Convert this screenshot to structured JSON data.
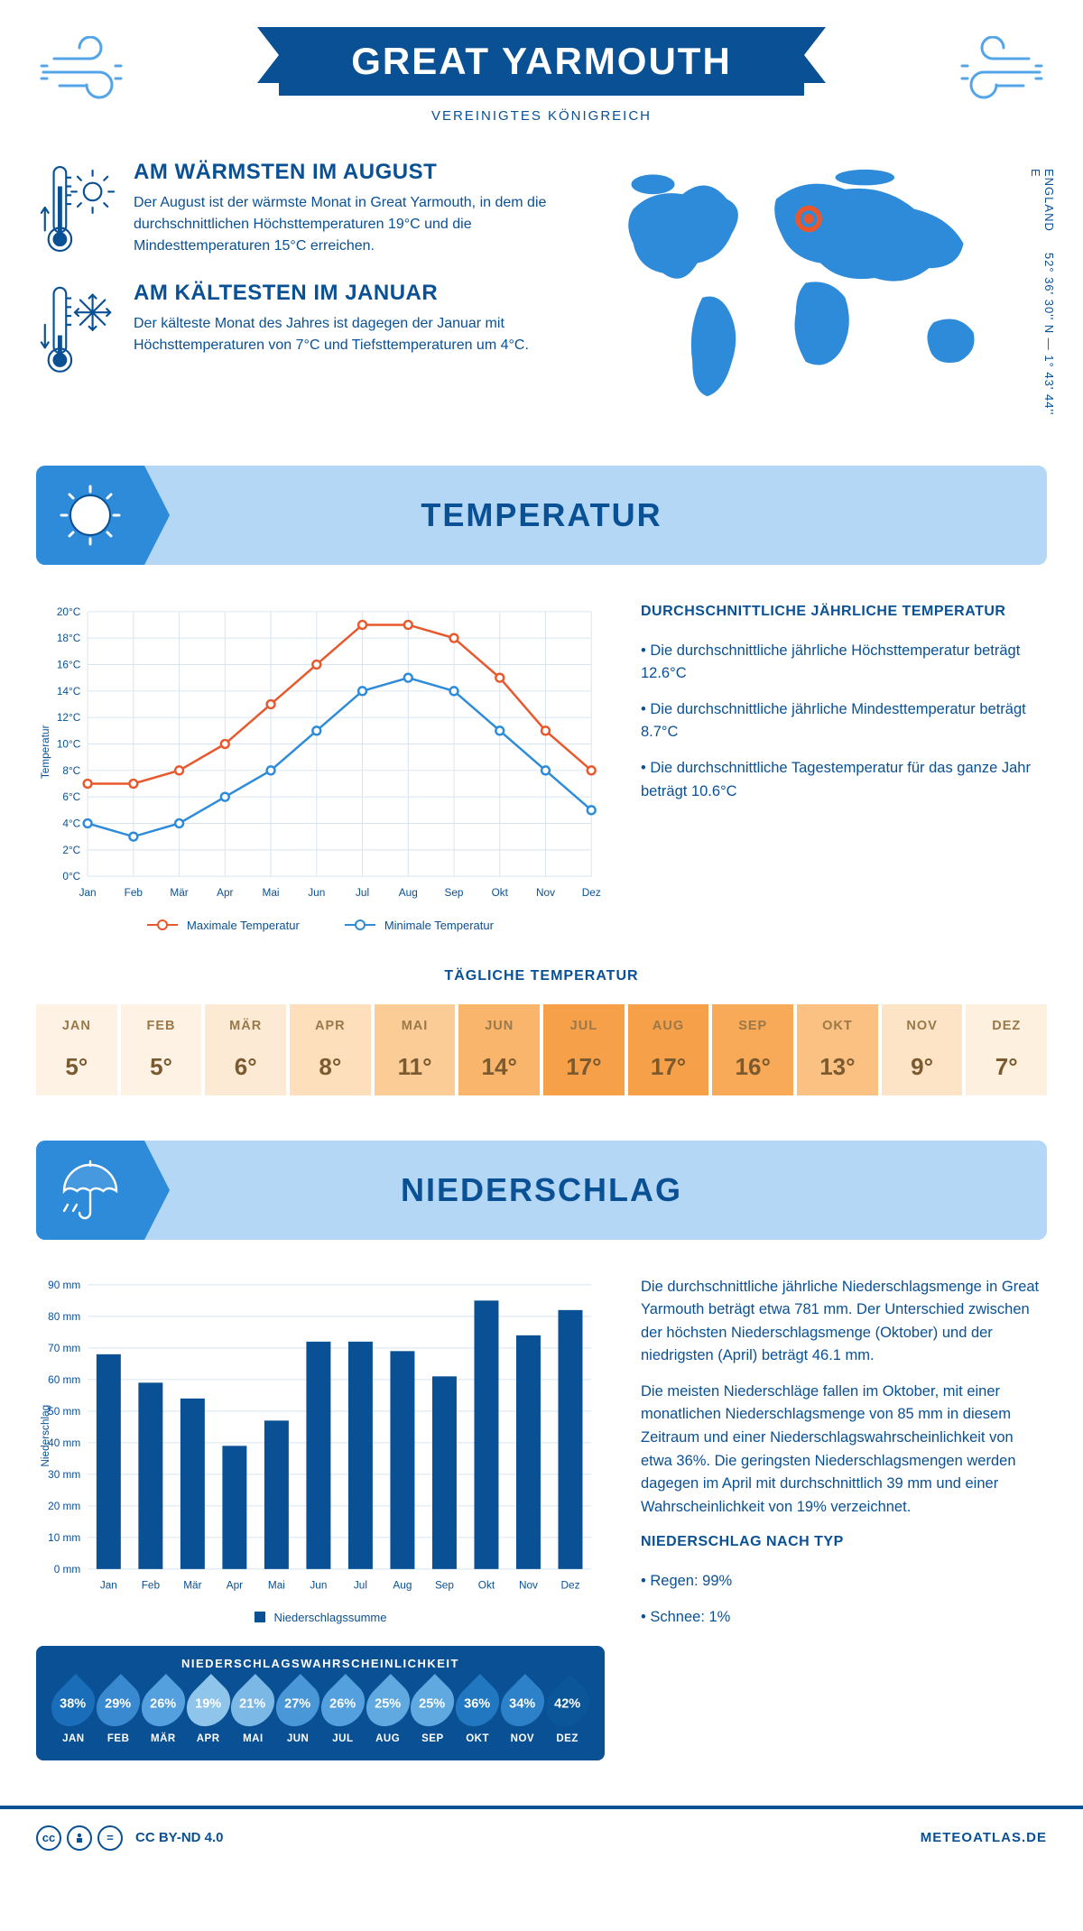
{
  "header": {
    "title": "GREAT YARMOUTH",
    "subtitle": "VEREINIGTES KÖNIGREICH",
    "coords": "52° 36' 30'' N — 1° 43' 44'' E",
    "country": "ENGLAND"
  },
  "intro": {
    "hot": {
      "title": "AM WÄRMSTEN IM AUGUST",
      "text": "Der August ist der wärmste Monat in Great Yarmouth, in dem die durchschnittlichen Höchsttemperaturen 19°C und die Mindesttemperaturen 15°C erreichen."
    },
    "cold": {
      "title": "AM KÄLTESTEN IM JANUAR",
      "text": "Der kälteste Monat des Jahres ist dagegen der Januar mit Höchsttemperaturen von 7°C und Tiefsttemperaturen um 4°C."
    }
  },
  "colors": {
    "primary": "#095094",
    "lightblue": "#b3d7f5",
    "midblue": "#2d8bda",
    "skyblue": "#53a5e8",
    "orange": "#e8582c",
    "grid": "#d8e4f0"
  },
  "months": [
    "Jan",
    "Feb",
    "Mär",
    "Apr",
    "Mai",
    "Jun",
    "Jul",
    "Aug",
    "Sep",
    "Okt",
    "Nov",
    "Dez"
  ],
  "months_upper": [
    "JAN",
    "FEB",
    "MÄR",
    "APR",
    "MAI",
    "JUN",
    "JUL",
    "AUG",
    "SEP",
    "OKT",
    "NOV",
    "DEZ"
  ],
  "temp_section": {
    "title": "TEMPERATUR",
    "chart": {
      "type": "line",
      "ylabel": "Temperatur",
      "ymin": 0,
      "ymax": 20,
      "ystep": 2,
      "max_series": [
        7,
        7,
        8,
        10,
        13,
        16,
        19,
        19,
        18,
        15,
        11,
        8
      ],
      "min_series": [
        4,
        3,
        4,
        6,
        8,
        11,
        14,
        15,
        14,
        11,
        8,
        5
      ],
      "max_color": "#e8582c",
      "min_color": "#2d8bda",
      "max_label": "Maximale Temperatur",
      "min_label": "Minimale Temperatur"
    },
    "yearly": {
      "title": "DURCHSCHNITTLICHE JÄHRLICHE TEMPERATUR",
      "b1": "• Die durchschnittliche jährliche Höchsttemperatur beträgt 12.6°C",
      "b2": "• Die durchschnittliche jährliche Mindesttemperatur beträgt 8.7°C",
      "b3": "• Die durchschnittliche Tagestemperatur für das ganze Jahr beträgt 10.6°C"
    },
    "daily": {
      "title": "TÄGLICHE TEMPERATUR",
      "values": [
        "5°",
        "5°",
        "6°",
        "8°",
        "11°",
        "14°",
        "17°",
        "17°",
        "16°",
        "13°",
        "9°",
        "7°"
      ],
      "bg": [
        "#fef2e4",
        "#fef2e4",
        "#fdead5",
        "#fddfbc",
        "#fbcc96",
        "#f9b56c",
        "#f7a04a",
        "#f7a04a",
        "#f8aa58",
        "#fac182",
        "#fde4c7",
        "#fef0df"
      ]
    }
  },
  "rain_section": {
    "title": "NIEDERSCHLAG",
    "chart": {
      "type": "bar",
      "ylabel": "Niederschlag",
      "ymin": 0,
      "ymax": 90,
      "ystep": 10,
      "values": [
        68,
        59,
        54,
        39,
        47,
        72,
        72,
        69,
        61,
        85,
        74,
        82
      ],
      "bar_color": "#095094",
      "legend": "Niederschlagssumme"
    },
    "text": {
      "p1": "Die durchschnittliche jährliche Niederschlagsmenge in Great Yarmouth beträgt etwa 781 mm. Der Unterschied zwischen der höchsten Niederschlagsmenge (Oktober) und der niedrigsten (April) beträgt 46.1 mm.",
      "p2": "Die meisten Niederschläge fallen im Oktober, mit einer monatlichen Niederschlagsmenge von 85 mm in diesem Zeitraum und einer Niederschlagswahrscheinlichkeit von etwa 36%. Die geringsten Niederschlagsmengen werden dagegen im April mit durchschnittlich 39 mm und einer Wahrscheinlichkeit von 19% verzeichnet.",
      "by_type_title": "NIEDERSCHLAG NACH TYP",
      "t1": "• Regen: 99%",
      "t2": "• Schnee: 1%"
    },
    "prob": {
      "title": "NIEDERSCHLAGSWAHRSCHEINLICHKEIT",
      "values": [
        "38%",
        "29%",
        "26%",
        "19%",
        "21%",
        "27%",
        "26%",
        "25%",
        "25%",
        "36%",
        "34%",
        "42%"
      ],
      "colors": [
        "#1a6db8",
        "#3889cf",
        "#54a0de",
        "#8fc4eb",
        "#7bb8e6",
        "#4a97d8",
        "#54a0de",
        "#5fa8e0",
        "#5fa8e0",
        "#2178c1",
        "#2c81c8",
        "#0a5699"
      ]
    }
  },
  "footer": {
    "license": "CC BY-ND 4.0",
    "source": "METEOATLAS.DE"
  }
}
